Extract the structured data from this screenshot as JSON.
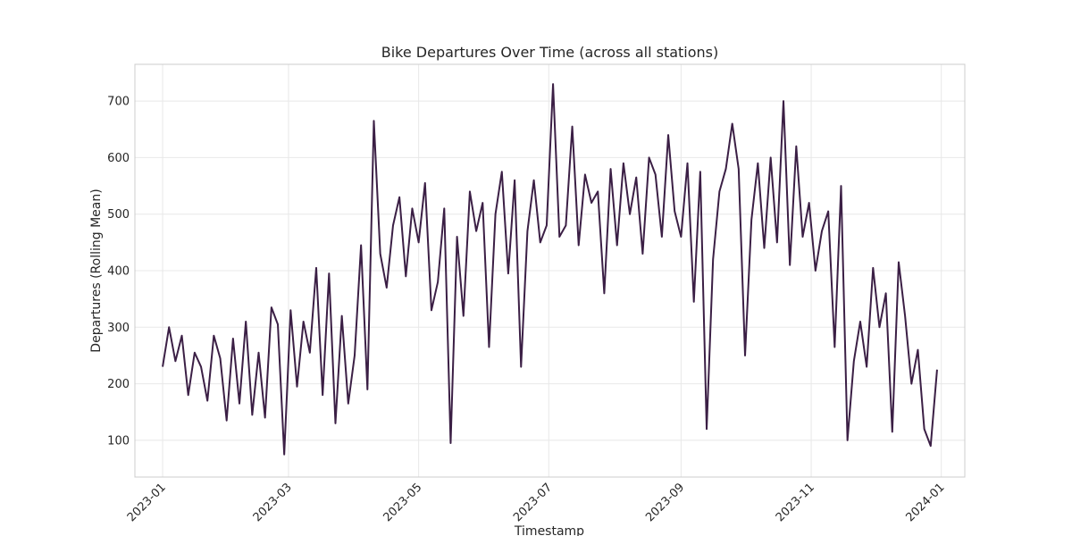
{
  "chart_data": {
    "type": "line",
    "title": "Bike Departures Over Time (across all stations)",
    "xlabel": "Timestamp",
    "ylabel": "Departures (Rolling Mean)",
    "x_ticks": [
      "2023-01",
      "2023-03",
      "2023-05",
      "2023-07",
      "2023-09",
      "2023-11",
      "2024-01"
    ],
    "y_ticks": [
      100,
      200,
      300,
      400,
      500,
      600,
      700
    ],
    "xlim": [
      "2022-12-19",
      "2024-01-12"
    ],
    "ylim": [
      35,
      765
    ],
    "grid": true,
    "line_color": "#3b1f45",
    "series": [
      {
        "x": [
          "2023-01-01",
          "2023-01-04",
          "2023-01-07",
          "2023-01-10",
          "2023-01-13",
          "2023-01-16",
          "2023-01-19",
          "2023-01-22",
          "2023-01-25",
          "2023-01-28",
          "2023-01-31",
          "2023-02-03",
          "2023-02-06",
          "2023-02-09",
          "2023-02-12",
          "2023-02-15",
          "2023-02-18",
          "2023-02-21",
          "2023-02-24",
          "2023-02-27",
          "2023-03-02",
          "2023-03-05",
          "2023-03-08",
          "2023-03-11",
          "2023-03-14",
          "2023-03-17",
          "2023-03-20",
          "2023-03-23",
          "2023-03-26",
          "2023-03-29",
          "2023-04-01",
          "2023-04-04",
          "2023-04-07",
          "2023-04-10",
          "2023-04-13",
          "2023-04-16",
          "2023-04-19",
          "2023-04-22",
          "2023-04-25",
          "2023-04-28",
          "2023-05-01",
          "2023-05-04",
          "2023-05-07",
          "2023-05-10",
          "2023-05-13",
          "2023-05-16",
          "2023-05-19",
          "2023-05-22",
          "2023-05-25",
          "2023-05-28",
          "2023-05-31",
          "2023-06-03",
          "2023-06-06",
          "2023-06-09",
          "2023-06-12",
          "2023-06-15",
          "2023-06-18",
          "2023-06-21",
          "2023-06-24",
          "2023-06-27",
          "2023-06-30",
          "2023-07-03",
          "2023-07-06",
          "2023-07-09",
          "2023-07-12",
          "2023-07-15",
          "2023-07-18",
          "2023-07-21",
          "2023-07-24",
          "2023-07-27",
          "2023-07-30",
          "2023-08-02",
          "2023-08-05",
          "2023-08-08",
          "2023-08-11",
          "2023-08-14",
          "2023-08-17",
          "2023-08-20",
          "2023-08-23",
          "2023-08-26",
          "2023-08-29",
          "2023-09-01",
          "2023-09-04",
          "2023-09-07",
          "2023-09-10",
          "2023-09-13",
          "2023-09-16",
          "2023-09-19",
          "2023-09-22",
          "2023-09-25",
          "2023-09-28",
          "2023-10-01",
          "2023-10-04",
          "2023-10-07",
          "2023-10-10",
          "2023-10-13",
          "2023-10-16",
          "2023-10-19",
          "2023-10-22",
          "2023-10-25",
          "2023-10-28",
          "2023-10-31",
          "2023-11-03",
          "2023-11-06",
          "2023-11-09",
          "2023-11-12",
          "2023-11-15",
          "2023-11-18",
          "2023-11-21",
          "2023-11-24",
          "2023-11-27",
          "2023-11-30",
          "2023-12-03",
          "2023-12-06",
          "2023-12-09",
          "2023-12-12",
          "2023-12-15",
          "2023-12-18",
          "2023-12-21",
          "2023-12-24",
          "2023-12-27",
          "2023-12-30"
        ],
        "y": [
          230,
          300,
          240,
          285,
          180,
          255,
          230,
          170,
          285,
          245,
          135,
          280,
          165,
          310,
          145,
          255,
          140,
          335,
          305,
          75,
          330,
          195,
          310,
          255,
          405,
          180,
          395,
          130,
          320,
          165,
          250,
          445,
          190,
          665,
          430,
          370,
          480,
          530,
          390,
          510,
          450,
          555,
          330,
          380,
          510,
          95,
          460,
          320,
          540,
          470,
          520,
          265,
          500,
          575,
          395,
          560,
          230,
          470,
          560,
          450,
          480,
          730,
          460,
          480,
          655,
          445,
          570,
          520,
          540,
          360,
          580,
          445,
          590,
          500,
          565,
          430,
          600,
          570,
          460,
          640,
          505,
          460,
          590,
          345,
          575,
          120,
          420,
          540,
          580,
          660,
          580,
          250,
          490,
          590,
          440,
          600,
          450,
          700,
          410,
          620,
          460,
          520,
          400,
          470,
          505,
          265,
          550,
          100,
          240,
          310,
          230,
          405,
          300,
          360,
          115,
          415,
          320,
          200,
          260,
          120,
          90,
          225
        ]
      }
    ]
  }
}
